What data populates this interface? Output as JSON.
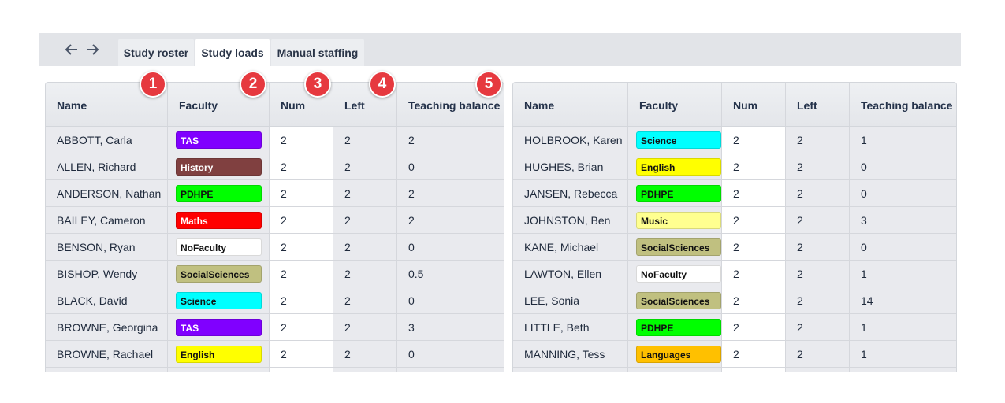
{
  "tabs": [
    "Study roster",
    "Study loads",
    "Manual staffing"
  ],
  "active_tab": 1,
  "markers": [
    "1",
    "2",
    "3",
    "4",
    "5"
  ],
  "left_table": {
    "columns": [
      "Name",
      "Faculty",
      "Num",
      "Left",
      "Teaching balance"
    ],
    "rows": [
      {
        "name": "ABBOTT, Carla",
        "faculty": "TAS",
        "faculty_color": "#8000ff",
        "num": 2,
        "left": 2,
        "balance": 2
      },
      {
        "name": "ALLEN, Richard",
        "faculty": "History",
        "faculty_color": "#804040",
        "num": 2,
        "left": 2,
        "balance": 0
      },
      {
        "name": "ANDERSON, Nathan",
        "faculty": "PDHPE",
        "faculty_color": "#00ff00",
        "num": 2,
        "left": 2,
        "balance": 2
      },
      {
        "name": "BAILEY, Cameron",
        "faculty": "Maths",
        "faculty_color": "#ff0000",
        "num": 2,
        "left": 2,
        "balance": 2
      },
      {
        "name": "BENSON, Ryan",
        "faculty": "NoFaculty",
        "faculty_color": "#ffffff",
        "num": 2,
        "left": 2,
        "balance": 0
      },
      {
        "name": "BISHOP, Wendy",
        "faculty": "SocialSciences",
        "faculty_color": "#c0c080",
        "num": 2,
        "left": 2,
        "balance": 0.5
      },
      {
        "name": "BLACK, David",
        "faculty": "Science",
        "faculty_color": "#00ffff",
        "num": 2,
        "left": 2,
        "balance": 0
      },
      {
        "name": "BROWNE, Georgina",
        "faculty": "TAS",
        "faculty_color": "#8000ff",
        "num": 2,
        "left": 2,
        "balance": 3
      },
      {
        "name": "BROWNE, Rachael",
        "faculty": "English",
        "faculty_color": "#ffff00",
        "num": 2,
        "left": 2,
        "balance": 0
      }
    ]
  },
  "right_table": {
    "columns": [
      "Name",
      "Faculty",
      "Num",
      "Left",
      "Teaching balance"
    ],
    "rows": [
      {
        "name": "HOLBROOK, Karen",
        "faculty": "Science",
        "faculty_color": "#00ffff",
        "num": 2,
        "left": 2,
        "balance": 1
      },
      {
        "name": "HUGHES, Brian",
        "faculty": "English",
        "faculty_color": "#ffff00",
        "num": 2,
        "left": 2,
        "balance": 0
      },
      {
        "name": "JANSEN, Rebecca",
        "faculty": "PDHPE",
        "faculty_color": "#00ff00",
        "num": 2,
        "left": 2,
        "balance": 0
      },
      {
        "name": "JOHNSTON, Ben",
        "faculty": "Music",
        "faculty_color": "#ffff90",
        "num": 2,
        "left": 2,
        "balance": 3
      },
      {
        "name": "KANE, Michael",
        "faculty": "SocialSciences",
        "faculty_color": "#c0c080",
        "num": 2,
        "left": 2,
        "balance": 0
      },
      {
        "name": "LAWTON, Ellen",
        "faculty": "NoFaculty",
        "faculty_color": "#ffffff",
        "num": 2,
        "left": 2,
        "balance": 1
      },
      {
        "name": "LEE, Sonia",
        "faculty": "SocialSciences",
        "faculty_color": "#c0c080",
        "num": 2,
        "left": 2,
        "balance": 14
      },
      {
        "name": "LITTLE, Beth",
        "faculty": "PDHPE",
        "faculty_color": "#00ff00",
        "num": 2,
        "left": 2,
        "balance": 1
      },
      {
        "name": "MANNING, Tess",
        "faculty": "Languages",
        "faculty_color": "#ffc000",
        "num": 2,
        "left": 2,
        "balance": 1
      }
    ]
  }
}
